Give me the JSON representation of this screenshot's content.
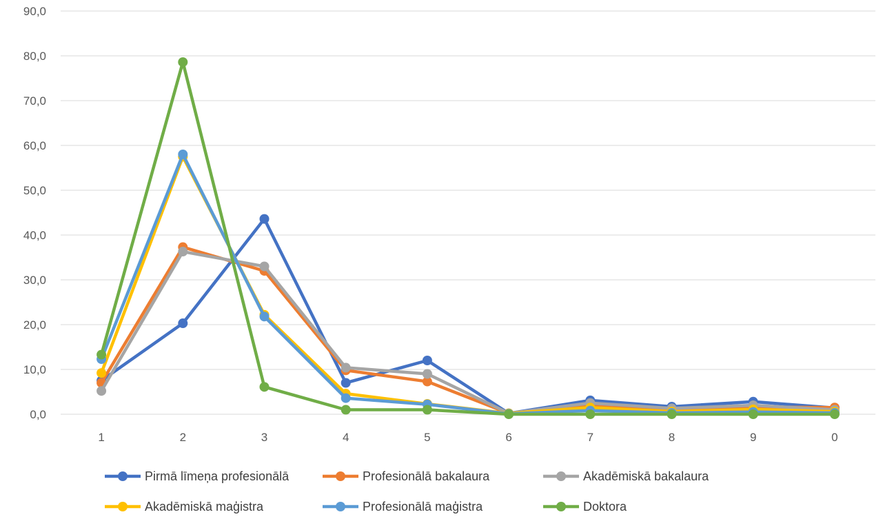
{
  "chart_data": {
    "type": "line",
    "categories": [
      "1",
      "2",
      "3",
      "4",
      "5",
      "6",
      "7",
      "8",
      "9",
      "0"
    ],
    "ylim": [
      0,
      90
    ],
    "y_ticks": [
      "0,0",
      "10,0",
      "20,0",
      "30,0",
      "40,0",
      "50,0",
      "60,0",
      "70,0",
      "80,0",
      "90,0"
    ],
    "grid": true,
    "legend_position": "bottom",
    "series": [
      {
        "name": "Pirmā līmeņa profesionālā",
        "color": "#4472C4",
        "values": [
          7.5,
          20.3,
          43.6,
          7.0,
          12.0,
          0.2,
          3.1,
          1.7,
          2.8,
          1.4
        ]
      },
      {
        "name": "Profesionālā bakalaura",
        "color": "#ED7D31",
        "values": [
          7.0,
          37.3,
          32.0,
          9.8,
          7.3,
          0.2,
          2.0,
          1.0,
          1.6,
          1.5
        ]
      },
      {
        "name": "Akadēmiskā bakalaura",
        "color": "#A5A5A5",
        "values": [
          5.2,
          36.3,
          33.0,
          10.4,
          9.0,
          0.2,
          2.5,
          1.3,
          2.0,
          1.0
        ]
      },
      {
        "name": "Akadēmiskā maģistra",
        "color": "#FFC000",
        "values": [
          9.2,
          57.5,
          22.2,
          4.6,
          2.3,
          0.2,
          1.5,
          0.6,
          1.1,
          0.6
        ]
      },
      {
        "name": "Profesionālā maģistra",
        "color": "#5B9BD5",
        "values": [
          12.3,
          58.0,
          21.8,
          3.6,
          2.2,
          0.1,
          0.8,
          0.3,
          0.5,
          0.3
        ]
      },
      {
        "name": "Doktora",
        "color": "#70AD47",
        "values": [
          13.3,
          78.6,
          6.1,
          1.0,
          1.0,
          0.0,
          0.0,
          0.0,
          0.0,
          0.0
        ]
      }
    ]
  }
}
